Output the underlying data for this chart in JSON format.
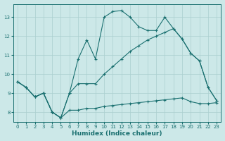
{
  "xlabel": "Humidex (Indice chaleur)",
  "xlim": [
    -0.5,
    23.5
  ],
  "ylim": [
    7.5,
    13.7
  ],
  "yticks": [
    8,
    9,
    10,
    11,
    12,
    13
  ],
  "xticks": [
    0,
    1,
    2,
    3,
    4,
    5,
    6,
    7,
    8,
    9,
    10,
    11,
    12,
    13,
    14,
    15,
    16,
    17,
    18,
    19,
    20,
    21,
    22,
    23
  ],
  "bg_color": "#cce8e8",
  "line_color": "#1a7070",
  "grid_color": "#aacfcf",
  "line1_x": [
    0,
    1,
    2,
    3,
    4,
    5,
    6,
    7,
    8,
    9,
    10,
    11,
    12,
    13,
    14,
    15,
    16,
    17,
    18,
    19,
    20,
    21,
    22,
    23
  ],
  "line1_y": [
    9.6,
    9.3,
    8.8,
    9.0,
    8.0,
    7.7,
    9.0,
    10.8,
    11.8,
    10.8,
    13.0,
    13.3,
    13.35,
    13.0,
    12.5,
    12.3,
    12.3,
    13.0,
    12.4,
    11.85,
    11.1,
    10.7,
    9.3,
    8.6
  ],
  "line2_x": [
    0,
    1,
    2,
    3,
    4,
    5,
    6,
    7,
    8,
    9,
    10,
    11,
    12,
    13,
    14,
    15,
    16,
    17,
    18,
    19,
    20,
    21,
    22,
    23
  ],
  "line2_y": [
    9.6,
    9.3,
    8.8,
    9.0,
    8.0,
    7.7,
    9.0,
    9.5,
    9.5,
    9.5,
    10.0,
    10.4,
    10.8,
    11.2,
    11.5,
    11.8,
    12.0,
    12.2,
    12.4,
    11.85,
    11.1,
    10.7,
    9.3,
    8.6
  ],
  "line3_x": [
    0,
    1,
    2,
    3,
    4,
    5,
    6,
    7,
    8,
    9,
    10,
    11,
    12,
    13,
    14,
    15,
    16,
    17,
    18,
    19,
    20,
    21,
    22,
    23
  ],
  "line3_y": [
    9.6,
    9.3,
    8.8,
    9.0,
    8.0,
    7.7,
    8.1,
    8.1,
    8.2,
    8.2,
    8.3,
    8.35,
    8.4,
    8.45,
    8.5,
    8.55,
    8.6,
    8.65,
    8.7,
    8.75,
    8.55,
    8.45,
    8.45,
    8.5
  ]
}
